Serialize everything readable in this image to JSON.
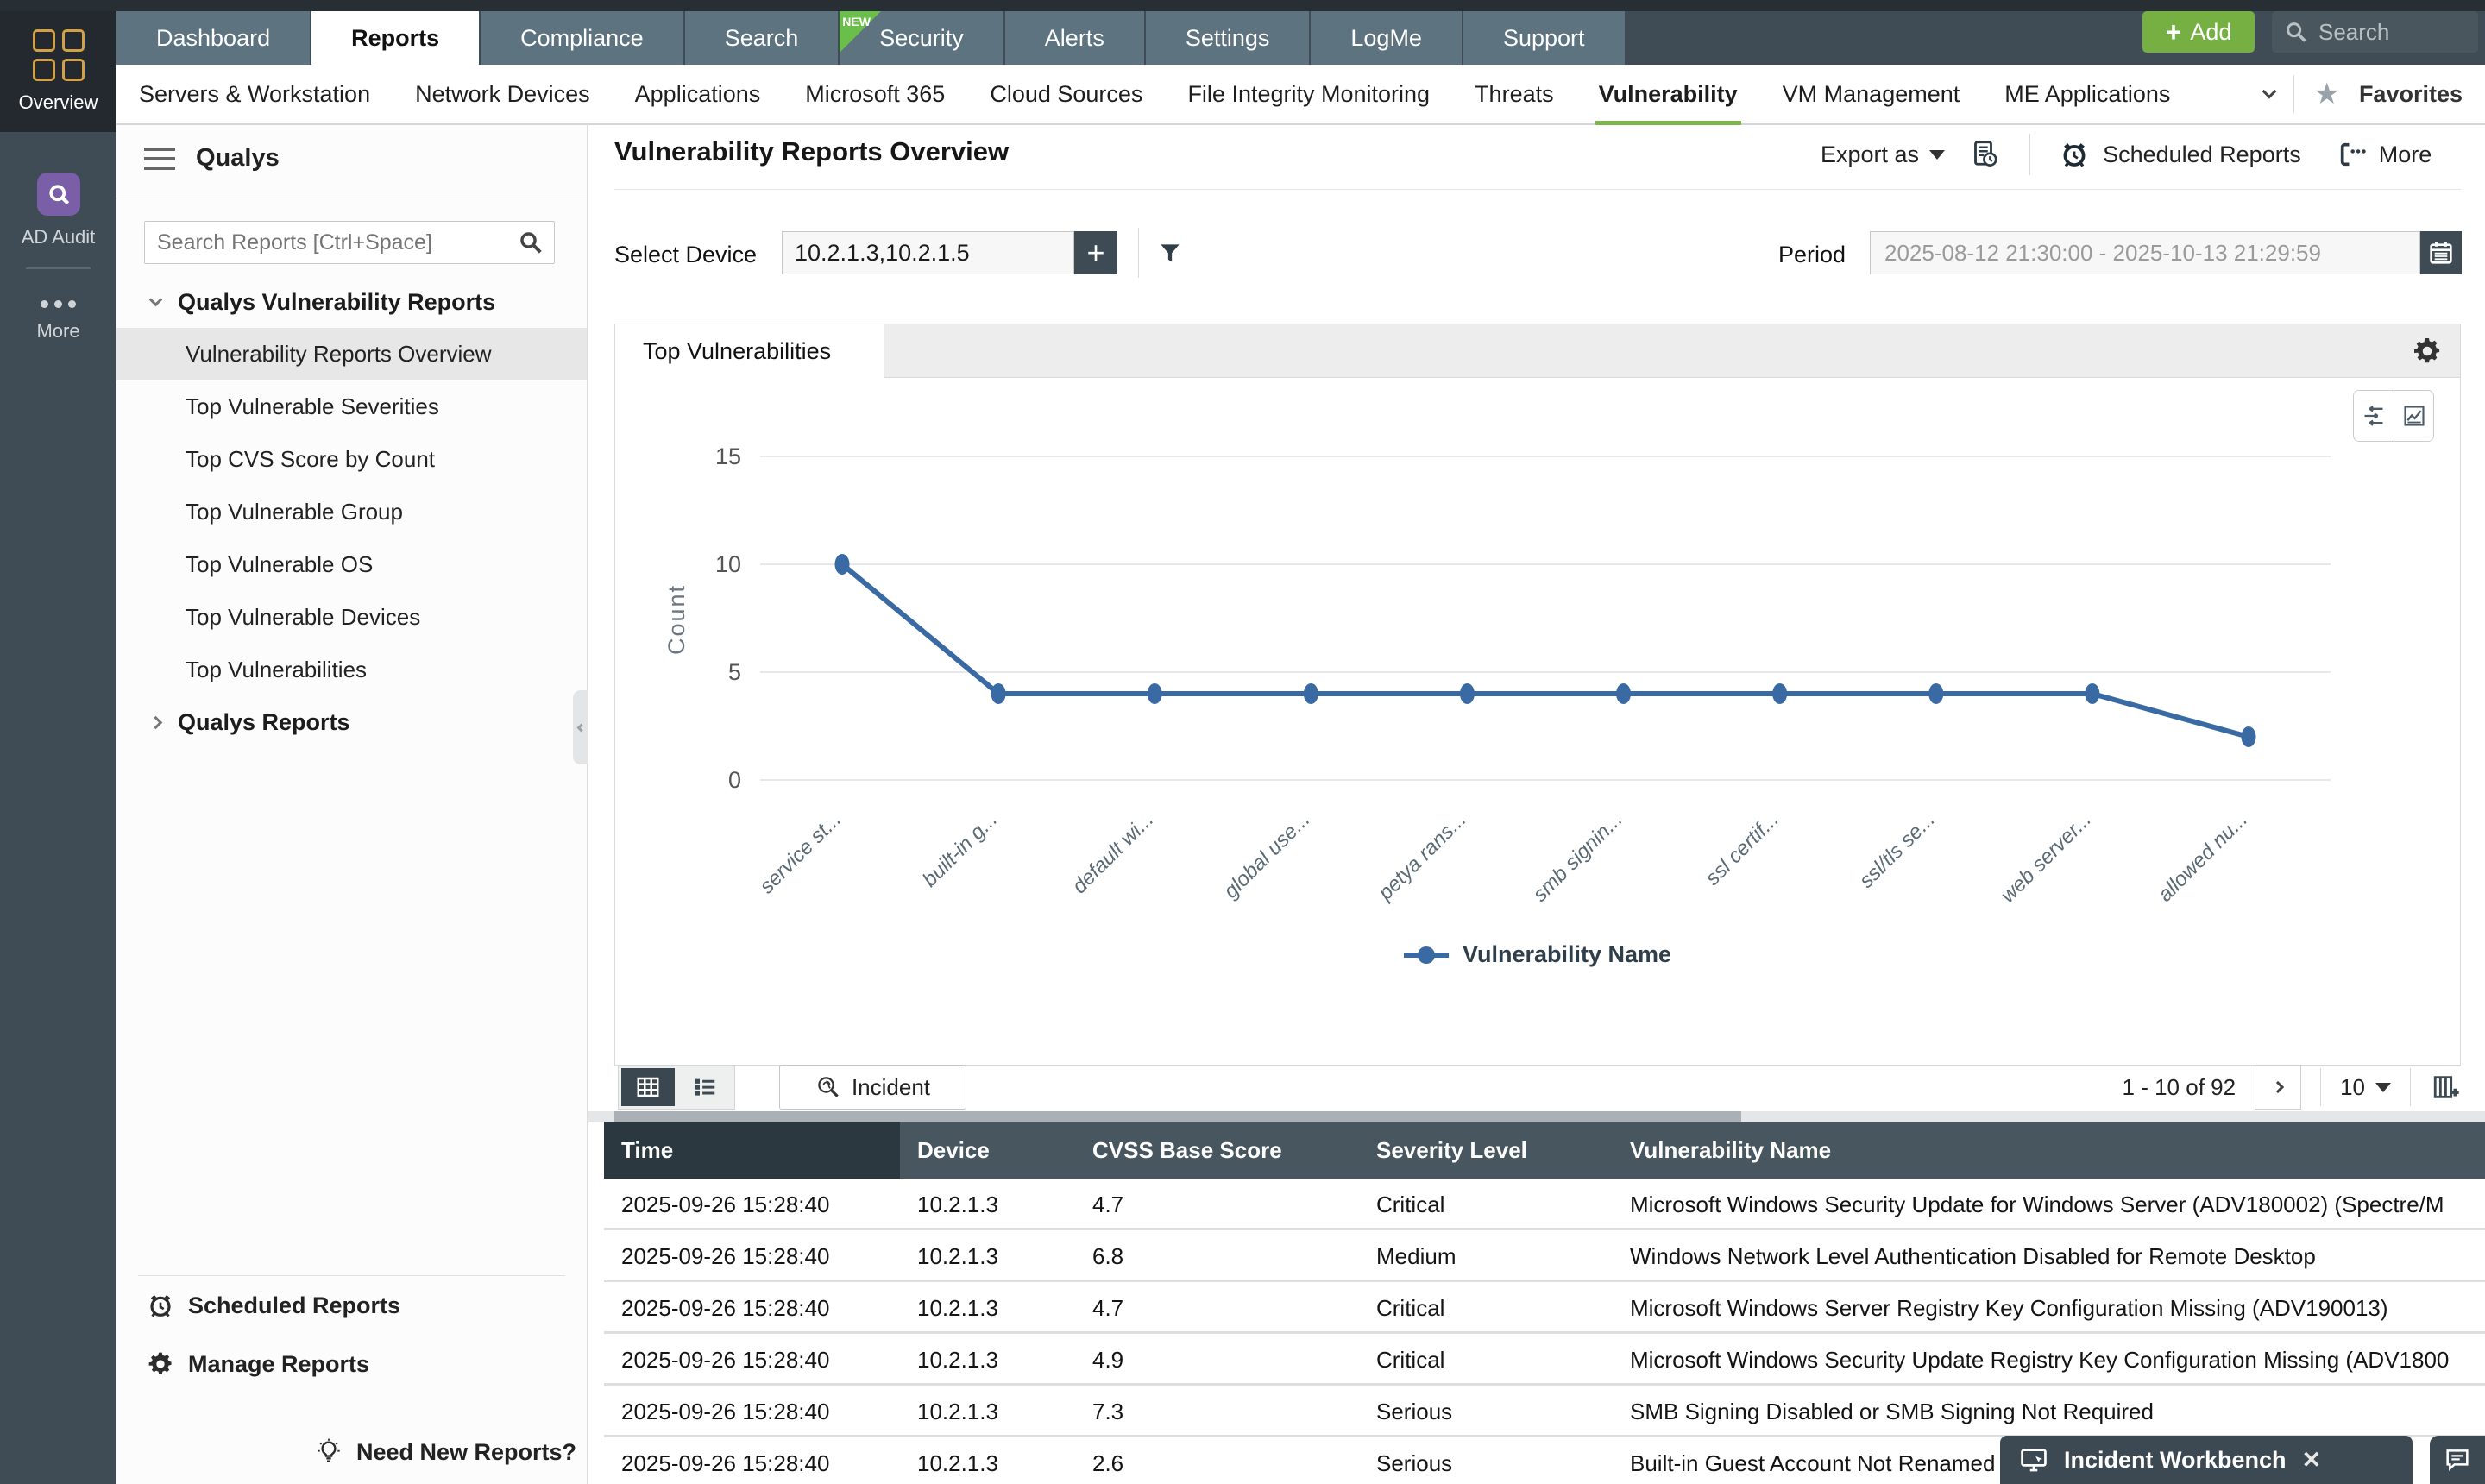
{
  "top_nav": {
    "tabs": [
      "Dashboard",
      "Reports",
      "Compliance",
      "Search",
      "Security",
      "Alerts",
      "Settings",
      "LogMe",
      "Support"
    ],
    "active_tab": "Reports",
    "new_badge_tab": "Security",
    "new_badge": "NEW",
    "add_label": "Add",
    "search_placeholder": "Search"
  },
  "rail": {
    "overview": "Overview",
    "ad_audit": "AD Audit",
    "more": "More"
  },
  "secondary_nav": {
    "items": [
      "Servers & Workstation",
      "Network Devices",
      "Applications",
      "Microsoft 365",
      "Cloud Sources",
      "File Integrity Monitoring",
      "Threats",
      "Vulnerability",
      "VM Management",
      "ME Applications"
    ],
    "active": "Vulnerability",
    "favorites": "Favorites",
    "accent_color": "#7ab648"
  },
  "sidebar": {
    "title": "Qualys",
    "search_placeholder": "Search Reports [Ctrl+Space]",
    "group1": "Qualys Vulnerability Reports",
    "group1_items": [
      "Vulnerability Reports Overview",
      "Top Vulnerable Severities",
      "Top CVS Score by Count",
      "Top Vulnerable Group",
      "Top Vulnerable OS",
      "Top Vulnerable Devices",
      "Top Vulnerabilities"
    ],
    "selected_item": "Vulnerability Reports Overview",
    "group2": "Qualys Reports",
    "footer": {
      "scheduled": "Scheduled Reports",
      "manage": "Manage Reports",
      "need_new": "Need New Reports?"
    }
  },
  "main": {
    "title": "Vulnerability Reports Overview",
    "export_label": "Export as",
    "scheduled_label": "Scheduled Reports",
    "more_label": "More",
    "select_device_label": "Select Device",
    "device_value": "10.2.1.3,10.2.1.5",
    "period_label": "Period",
    "period_value": "2025-08-12 21:30:00 - 2025-10-13 21:29:59",
    "chart_tab": "Top Vulnerabilities"
  },
  "chart_data": {
    "type": "line",
    "title": "Top Vulnerabilities",
    "categories": [
      "service st...",
      "built-in g...",
      "default wi...",
      "global use...",
      "petya rans...",
      "smb signin...",
      "ssl certif...",
      "ssl/tls se...",
      "web server...",
      "allowed nu..."
    ],
    "values": [
      10,
      4,
      4,
      4,
      4,
      4,
      4,
      4,
      4,
      2
    ],
    "series_name": "Vulnerability Name",
    "xlabel": "",
    "ylabel": "Count",
    "ylim": [
      0,
      15
    ],
    "yticks": [
      0,
      5,
      10,
      15
    ],
    "grid": true,
    "legend_position": "bottom",
    "line_color": "#3a6aa4"
  },
  "table": {
    "toolbar": {
      "incident_label": "Incident",
      "pagination": "1 - 10 of 92",
      "page_size": "10"
    },
    "columns": [
      "Time",
      "Device",
      "CVSS Base Score",
      "Severity Level",
      "Vulnerability Name"
    ],
    "rows": [
      {
        "time": "2025-09-26 15:28:40",
        "device": "10.2.1.3",
        "cvss": "4.7",
        "severity": "Critical",
        "name": "Microsoft Windows Security Update for Windows Server (ADV180002) (Spectre/M"
      },
      {
        "time": "2025-09-26 15:28:40",
        "device": "10.2.1.3",
        "cvss": "6.8",
        "severity": "Medium",
        "name": "Windows Network Level Authentication Disabled for Remote Desktop"
      },
      {
        "time": "2025-09-26 15:28:40",
        "device": "10.2.1.3",
        "cvss": "4.7",
        "severity": "Critical",
        "name": "Microsoft Windows Server Registry Key Configuration Missing (ADV190013)"
      },
      {
        "time": "2025-09-26 15:28:40",
        "device": "10.2.1.3",
        "cvss": "4.9",
        "severity": "Critical",
        "name": "Microsoft Windows Security Update Registry Key Configuration Missing (ADV1800"
      },
      {
        "time": "2025-09-26 15:28:40",
        "device": "10.2.1.3",
        "cvss": "7.3",
        "severity": "Serious",
        "name": "SMB Signing Disabled or SMB Signing Not Required"
      },
      {
        "time": "2025-09-26 15:28:40",
        "device": "10.2.1.3",
        "cvss": "2.6",
        "severity": "Serious",
        "name": "Built-in Guest Account Not Renamed"
      }
    ]
  },
  "workbench": {
    "label": "Incident Workbench"
  }
}
